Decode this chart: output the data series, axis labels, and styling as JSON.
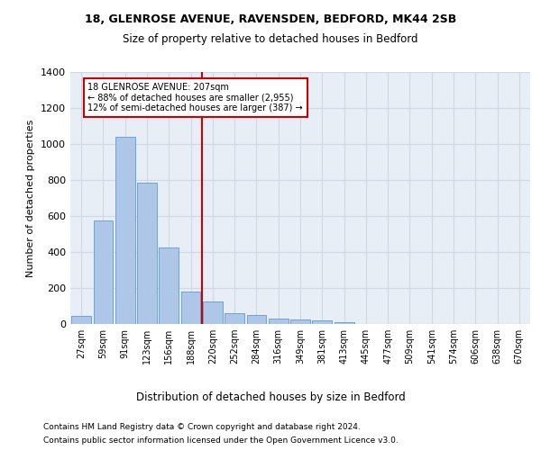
{
  "title_line1": "18, GLENROSE AVENUE, RAVENSDEN, BEDFORD, MK44 2SB",
  "title_line2": "Size of property relative to detached houses in Bedford",
  "xlabel": "Distribution of detached houses by size in Bedford",
  "ylabel": "Number of detached properties",
  "footnote1": "Contains HM Land Registry data © Crown copyright and database right 2024.",
  "footnote2": "Contains public sector information licensed under the Open Government Licence v3.0.",
  "annotation_line1": "18 GLENROSE AVENUE: 207sqm",
  "annotation_line2": "← 88% of detached houses are smaller (2,955)",
  "annotation_line3": "12% of semi-detached houses are larger (387) →",
  "categories": [
    "27sqm",
    "59sqm",
    "91sqm",
    "123sqm",
    "156sqm",
    "188sqm",
    "220sqm",
    "252sqm",
    "284sqm",
    "316sqm",
    "349sqm",
    "381sqm",
    "413sqm",
    "445sqm",
    "477sqm",
    "509sqm",
    "541sqm",
    "574sqm",
    "606sqm",
    "638sqm",
    "670sqm"
  ],
  "values": [
    45,
    575,
    1040,
    785,
    425,
    180,
    125,
    62,
    48,
    28,
    27,
    18,
    12,
    0,
    0,
    0,
    0,
    0,
    0,
    0,
    0
  ],
  "bar_color": "#aec6e8",
  "bar_edge_color": "#5b9bd5",
  "vline_color": "#cc0000",
  "vline_index": 6,
  "annotation_box_color": "#cc0000",
  "grid_color": "#d0d8e8",
  "background_color": "#e8eef5",
  "ylim": [
    0,
    1400
  ],
  "yticks": [
    0,
    200,
    400,
    600,
    800,
    1000,
    1200,
    1400
  ]
}
